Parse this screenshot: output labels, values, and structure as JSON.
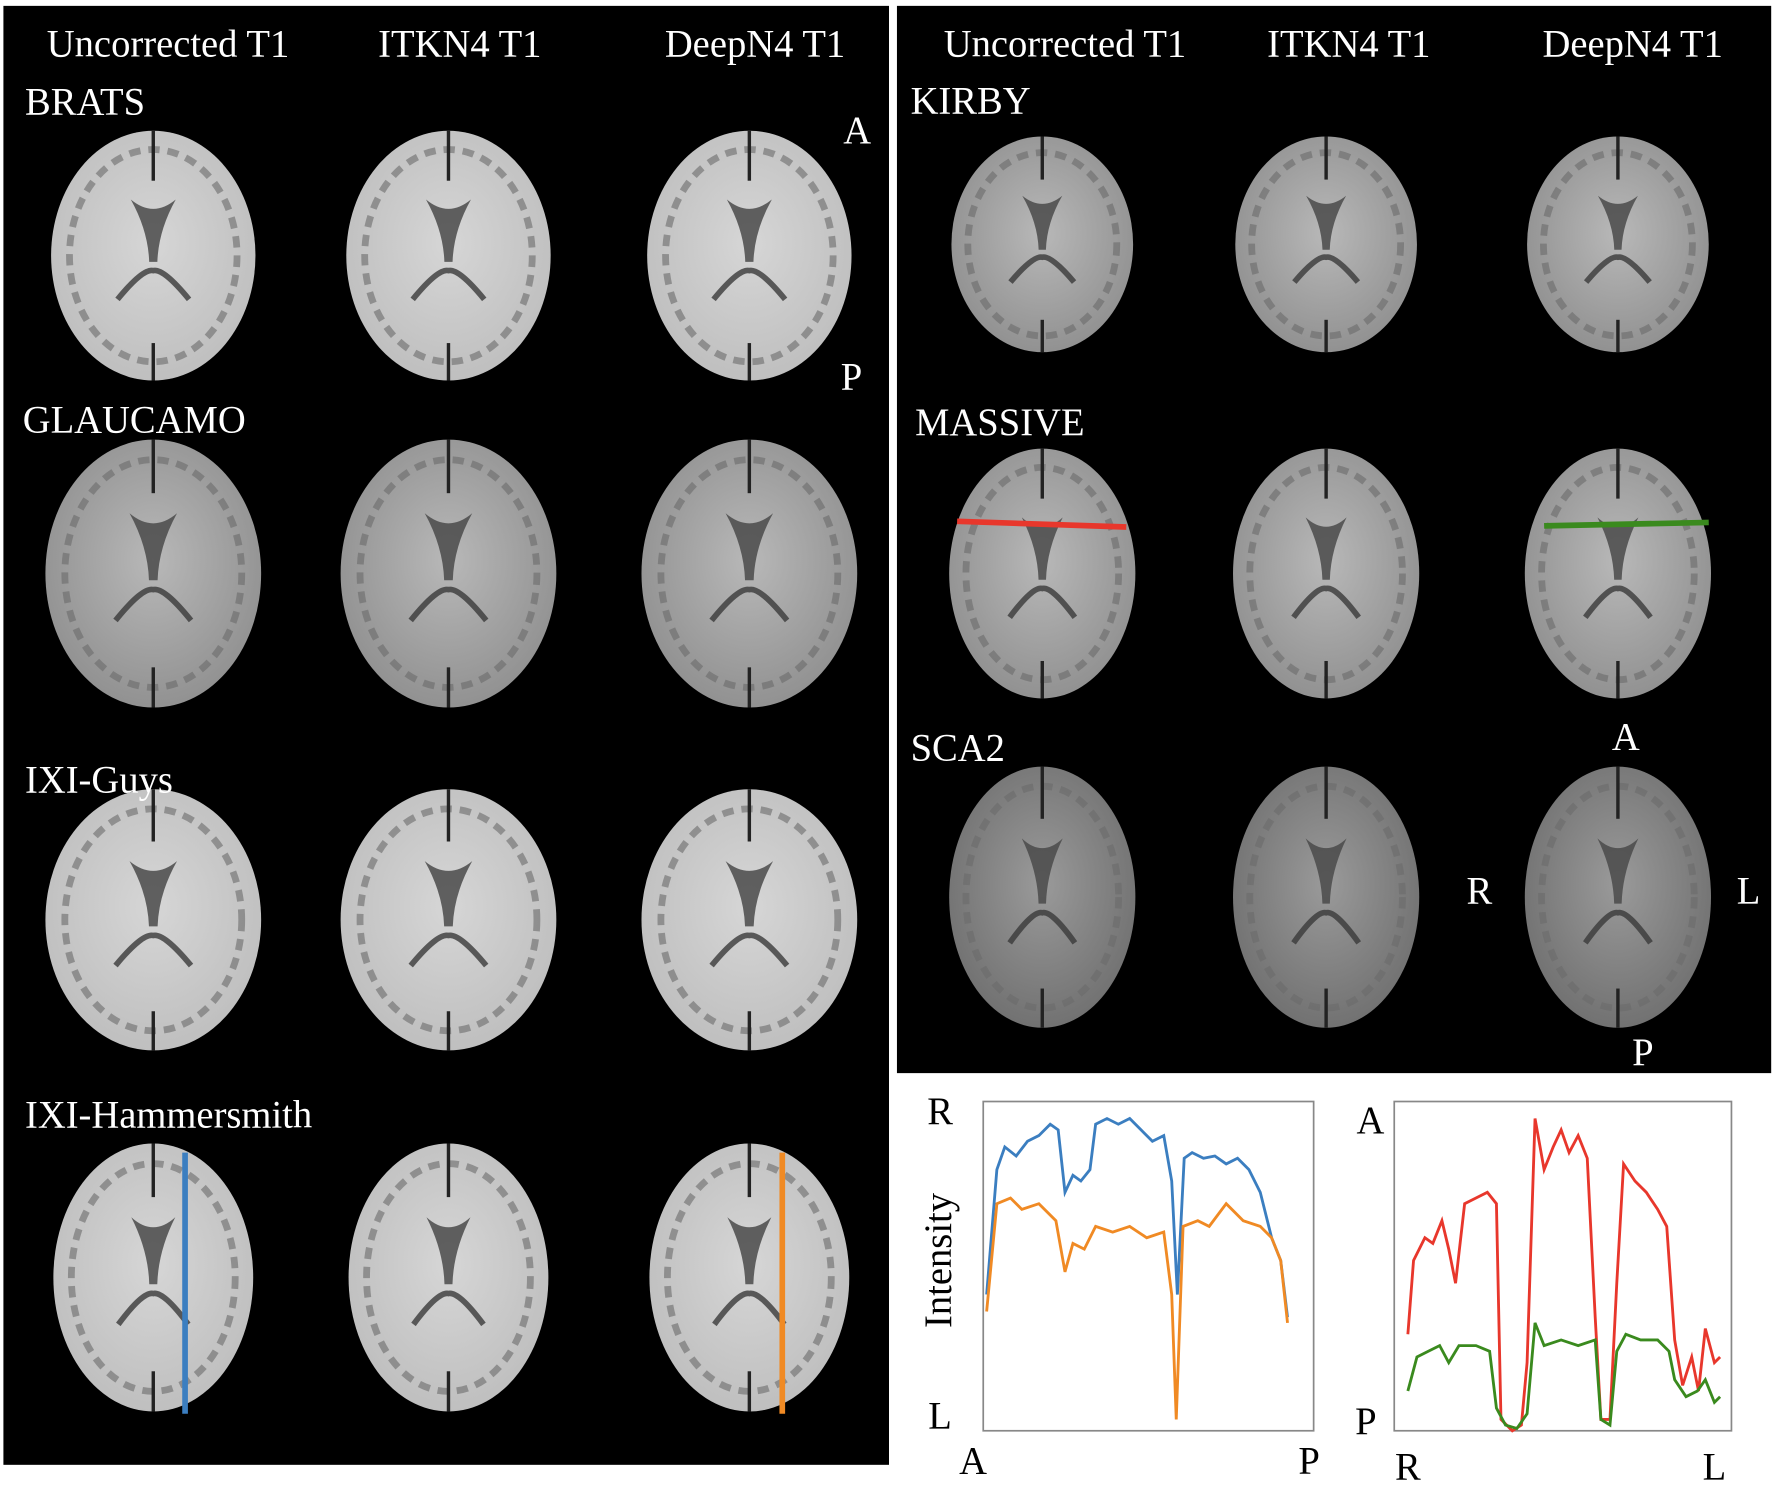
{
  "left_panel": {
    "column_headers": [
      "Uncorrected T1",
      "ITKN4 T1",
      "DeepN4 T1"
    ],
    "rows": [
      "BRATS",
      "GLAUCAMO",
      "IXI-Guys",
      "IXI-Hammersmith"
    ],
    "orientation": {
      "top": "A",
      "bottom": "P"
    }
  },
  "right_panel": {
    "column_headers": [
      "Uncorrected T1",
      "ITKN4 T1",
      "DeepN4 T1"
    ],
    "rows": [
      "KIRBY",
      "MASSIVE",
      "SCA2"
    ],
    "orientation": {
      "top": "A",
      "left": "R",
      "right": "L",
      "bottom": "P"
    }
  },
  "plots": [
    {
      "y_label": "Intensity",
      "y_top": "R",
      "y_bottom": "L",
      "x_left": "A",
      "x_right": "P"
    },
    {
      "y_top": "A",
      "y_bottom": "P",
      "x_left": "R",
      "x_right": "L"
    }
  ]
}
